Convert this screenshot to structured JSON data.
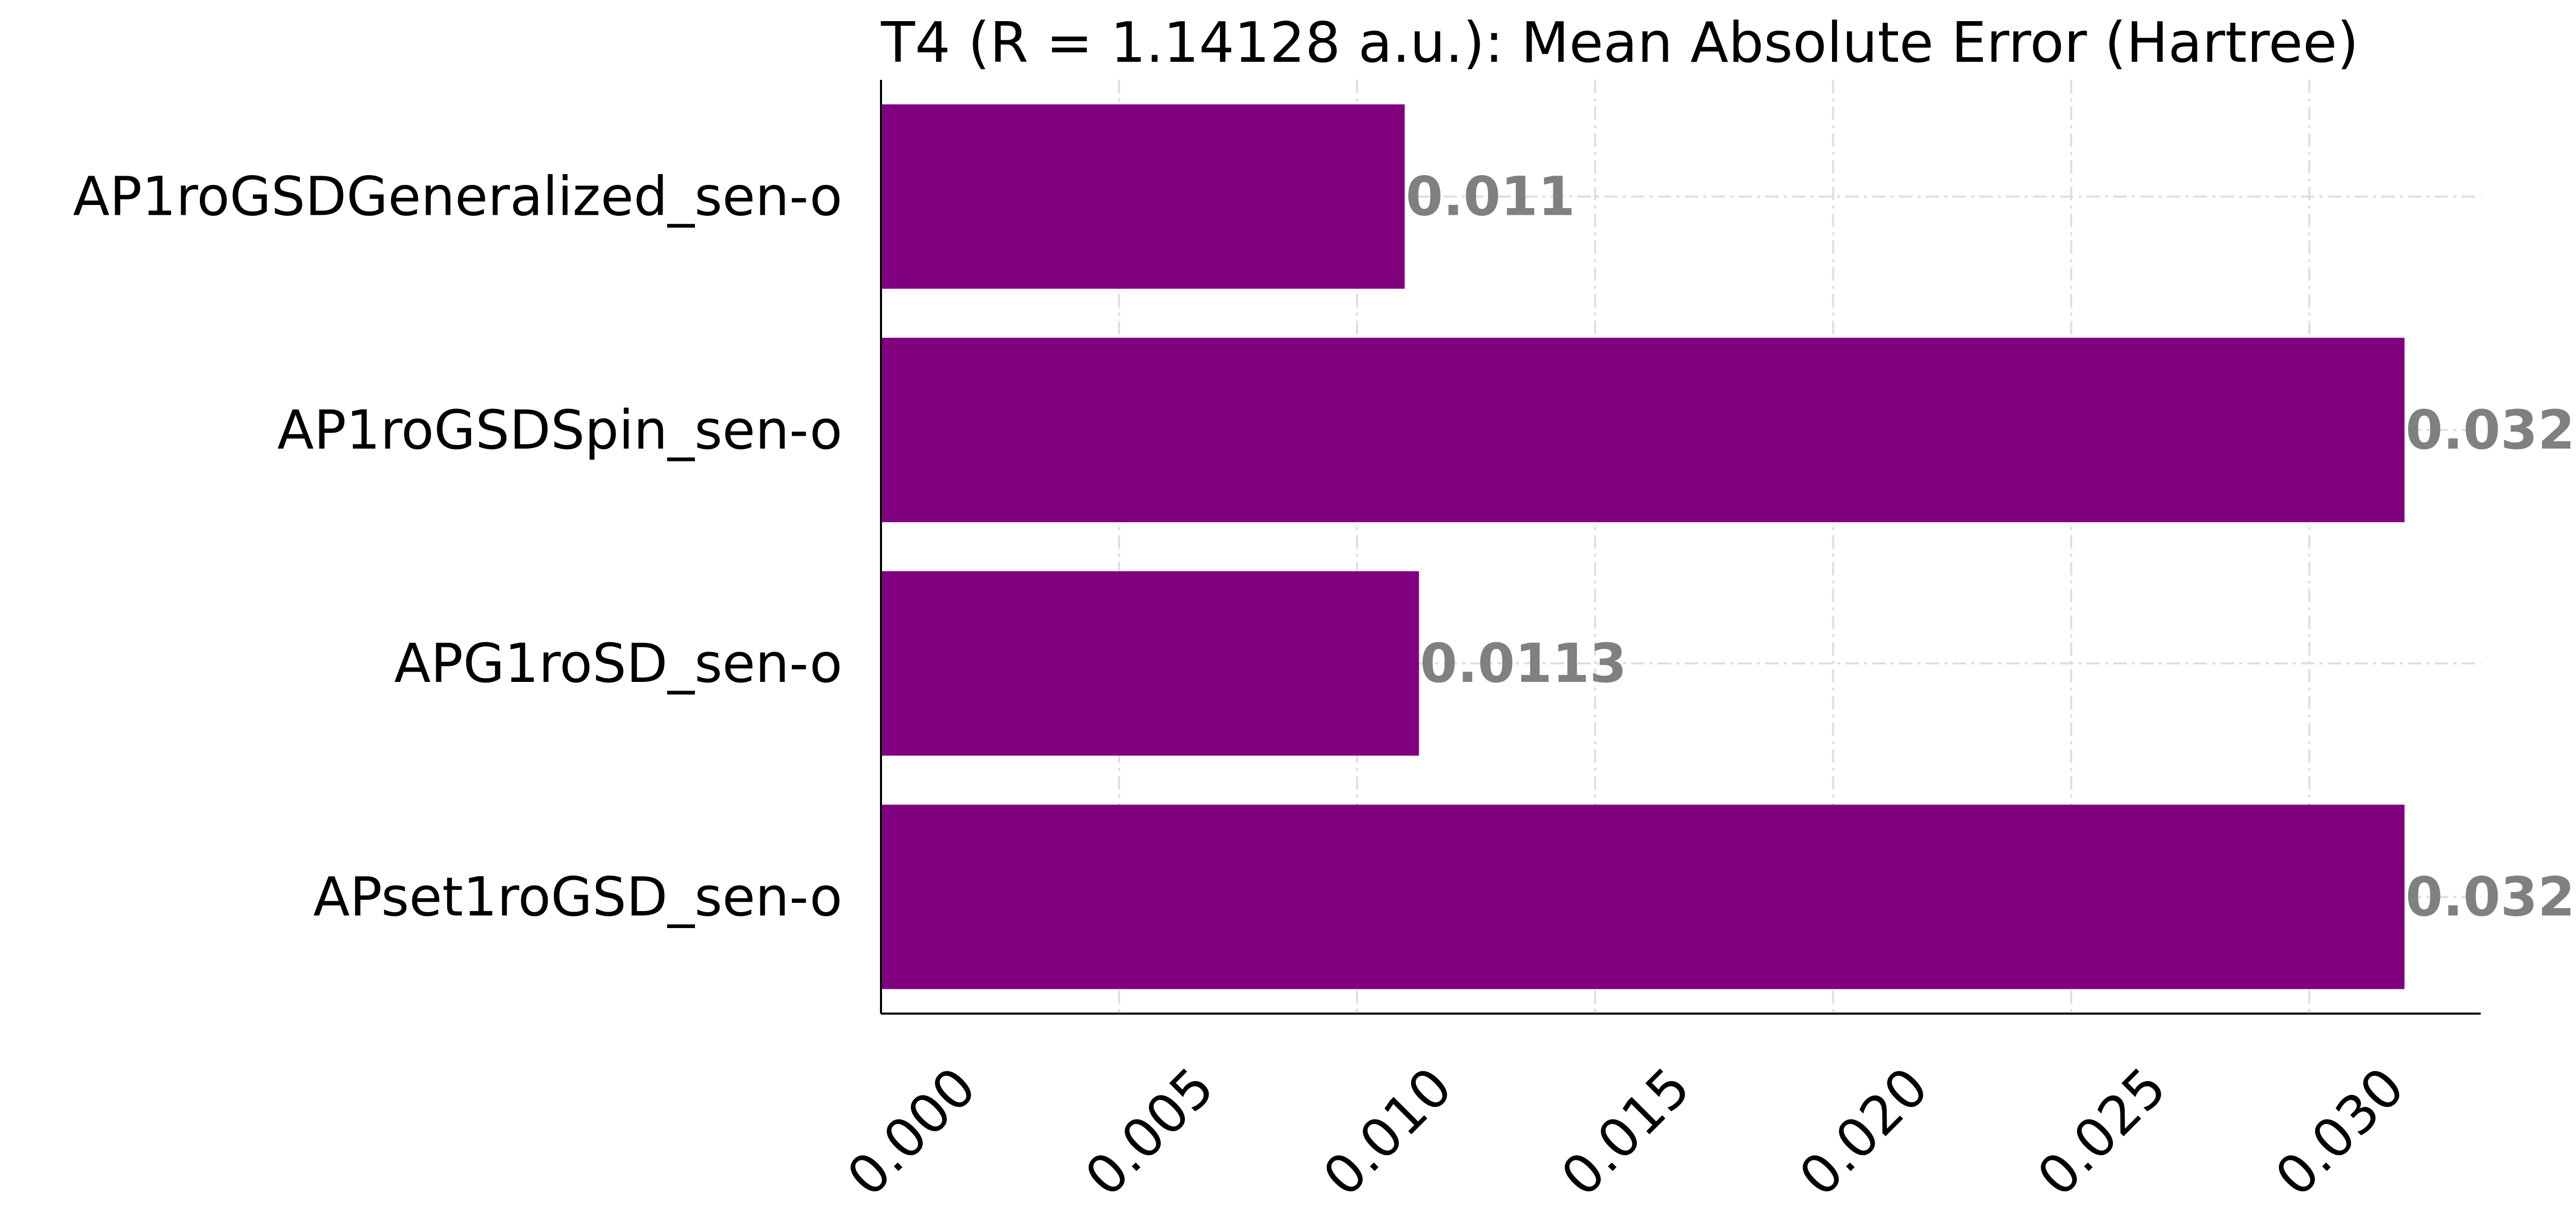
{
  "chart_data": {
    "type": "bar",
    "orientation": "horizontal",
    "title": "T4 (R = 1.14128 a.u.): Mean Absolute Error (Hartree)",
    "categories": [
      "AP1roGSDGeneralized_sen-o",
      "AP1roGSDSpin_sen-o",
      "APG1roSD_sen-o",
      "APset1roGSD_sen-o"
    ],
    "values": [
      0.011,
      0.032,
      0.0113,
      0.032
    ],
    "value_labels": [
      "0.011",
      "0.032",
      "0.0113",
      "0.032"
    ],
    "xticks": [
      0.0,
      0.005,
      0.01,
      0.015,
      0.02,
      0.025,
      0.03
    ],
    "xtick_labels": [
      "0.000",
      "0.005",
      "0.010",
      "0.015",
      "0.020",
      "0.025",
      "0.030"
    ],
    "xlim": [
      0,
      0.0336
    ],
    "xlabel": "",
    "ylabel": "",
    "grid": true,
    "legend": "none",
    "colors": {
      "bar": "#800080",
      "value_label": "#808080",
      "grid": "#d9d9d9",
      "axis": "#000000"
    }
  }
}
